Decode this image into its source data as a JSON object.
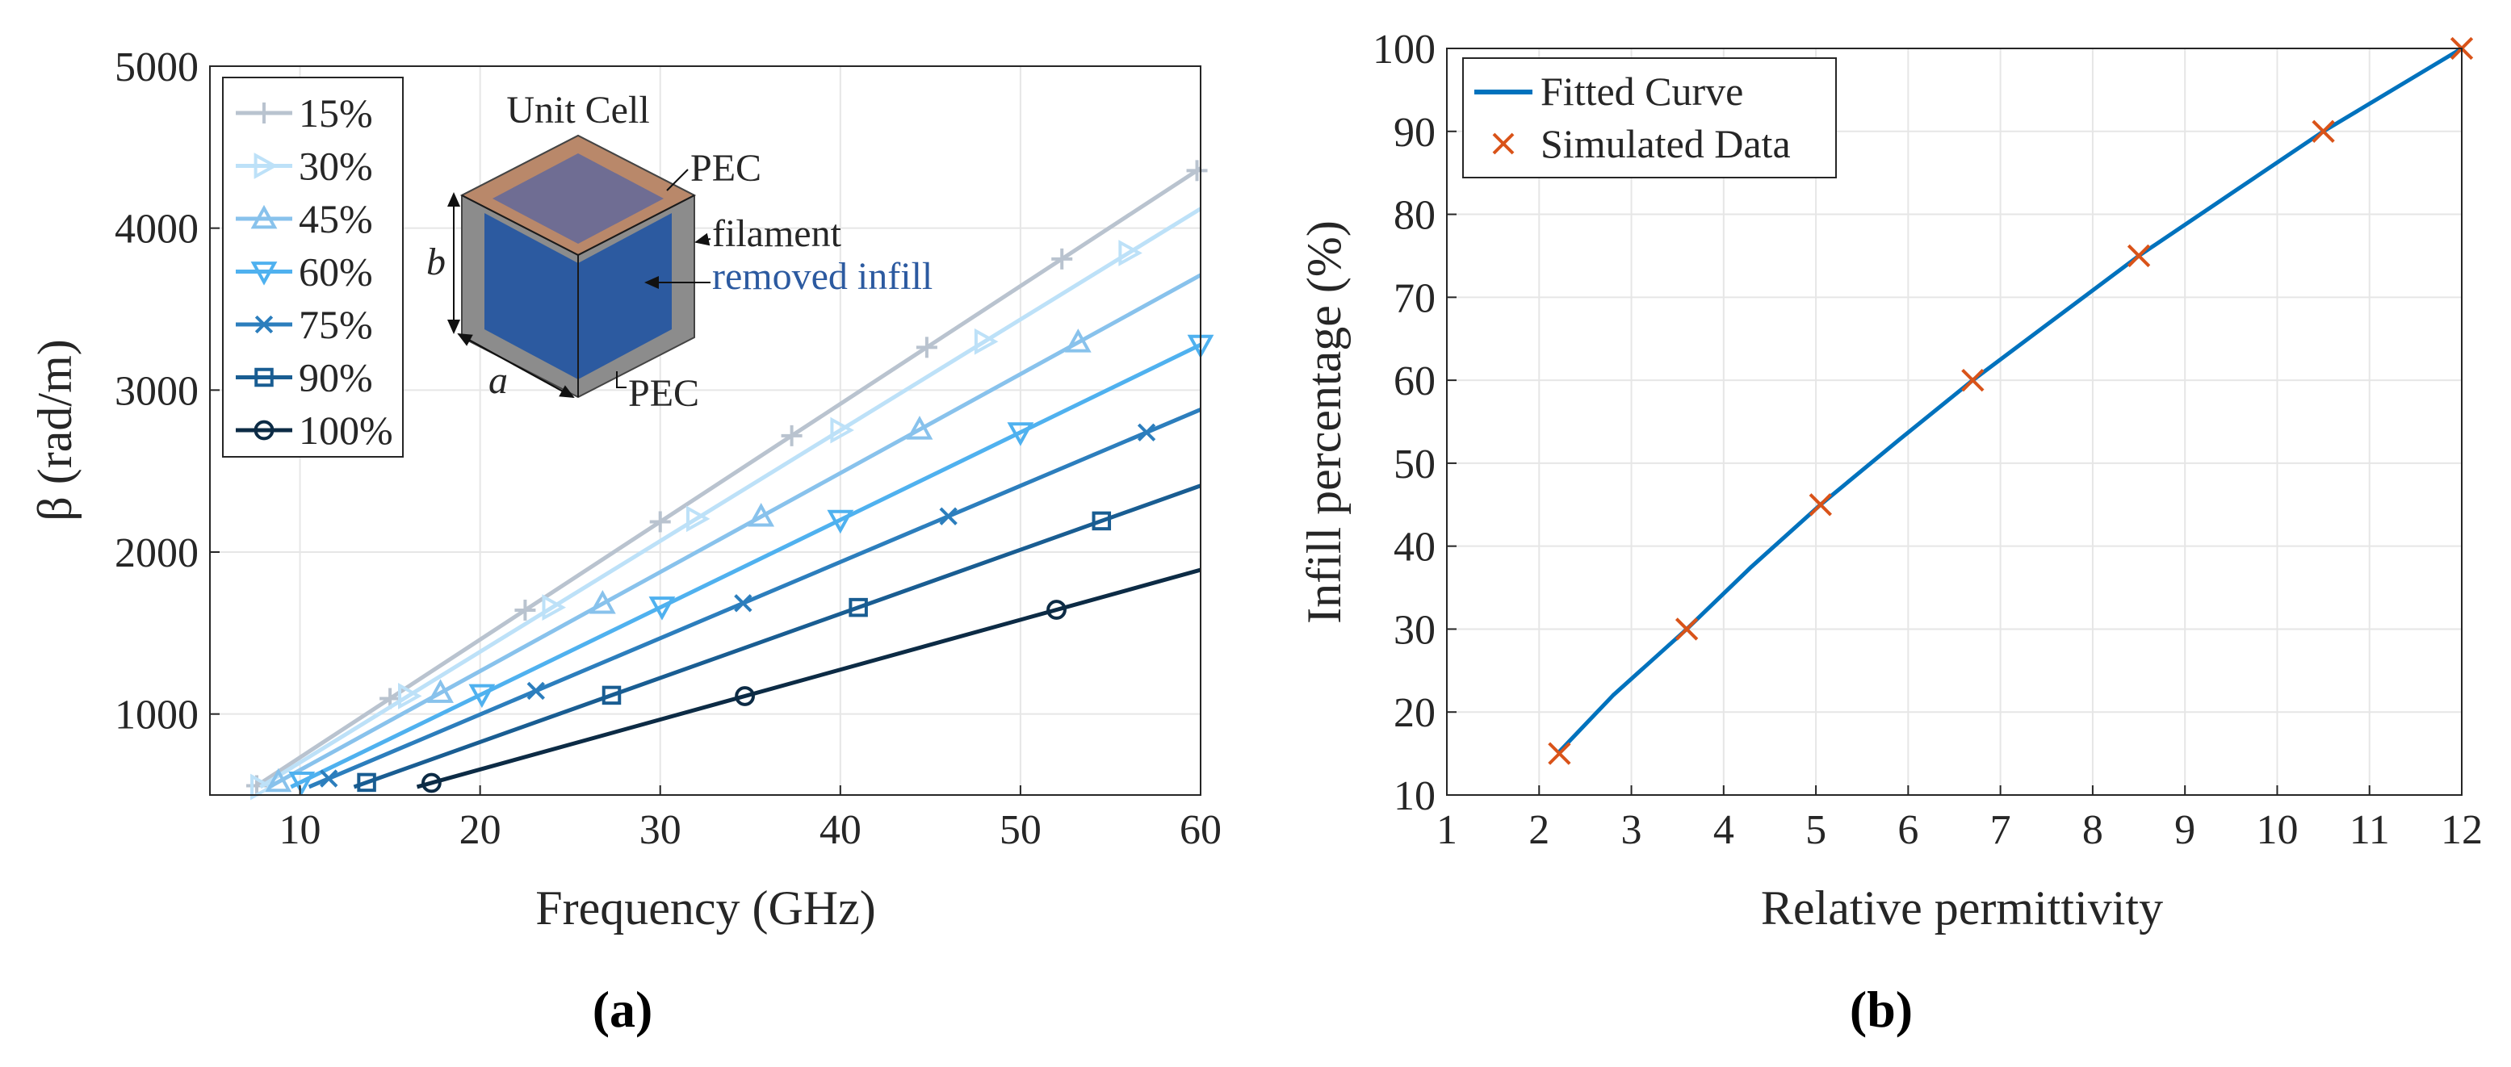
{
  "chart_data": [
    {
      "type": "line",
      "panel_label": "(a)",
      "xlabel": "Frequency (GHz)",
      "ylabel": "β (rad/m)",
      "xlim": [
        5,
        60
      ],
      "ylim": [
        500,
        5000
      ],
      "xticks": [
        10,
        20,
        30,
        40,
        50,
        60
      ],
      "yticks": [
        1000,
        2000,
        3000,
        4000,
        5000
      ],
      "grid": true,
      "legend_position": "top-left",
      "series": [
        {
          "name": "15%",
          "marker": "plus",
          "color": "#b9c3cf",
          "x": [
            7.5,
            60
          ],
          "y": [
            550,
            4370
          ],
          "markers_x": [
            7.6,
            15.0,
            22.5,
            30.0,
            37.3,
            44.8,
            52.3,
            59.8
          ]
        },
        {
          "name": "30%",
          "marker": "triangle-right",
          "color": "#bde1f8",
          "x": [
            7.8,
            60
          ],
          "y": [
            550,
            4120
          ],
          "markers_x": [
            7.8,
            16.0,
            24.0,
            32.0,
            40.0,
            48.0,
            56.0
          ]
        },
        {
          "name": "45%",
          "marker": "triangle-up",
          "color": "#88c2ec",
          "x": [
            8.3,
            60
          ],
          "y": [
            550,
            3710
          ],
          "markers_x": [
            8.8,
            17.8,
            26.8,
            35.6,
            44.4,
            53.2
          ]
        },
        {
          "name": "60%",
          "marker": "triangle-down",
          "color": "#4fb1ef",
          "x": [
            9.5,
            60
          ],
          "y": [
            550,
            3280
          ],
          "markers_x": [
            10.1,
            20.1,
            30.1,
            40.0,
            50.0,
            60.0
          ]
        },
        {
          "name": "75%",
          "marker": "x",
          "color": "#2c7ebd",
          "x": [
            10.5,
            60
          ],
          "y": [
            550,
            2880
          ],
          "markers_x": [
            11.6,
            23.1,
            34.6,
            46.0,
            57.0
          ]
        },
        {
          "name": "90%",
          "marker": "square",
          "color": "#195d92",
          "x": [
            13.0,
            60
          ],
          "y": [
            550,
            2410
          ],
          "markers_x": [
            13.7,
            27.3,
            41.0,
            54.5
          ]
        },
        {
          "name": "100%",
          "marker": "circle",
          "color": "#0c2b45",
          "x": [
            16.5,
            60
          ],
          "y": [
            550,
            1890
          ],
          "markers_x": [
            17.3,
            34.7,
            52.0
          ]
        }
      ],
      "inset": {
        "title": "Unit Cell",
        "labels": {
          "pec_top": "PEC",
          "filament": "filament",
          "removed_infill": "removed infill",
          "pec_bottom": "PEC",
          "dim_b": "b",
          "dim_a": "a"
        }
      }
    },
    {
      "type": "line",
      "panel_label": "(b)",
      "xlabel": "Relative permittivity",
      "ylabel": "Infill percentage (%)",
      "xlim": [
        1,
        12
      ],
      "ylim": [
        10,
        100
      ],
      "xticks": [
        1,
        2,
        3,
        4,
        5,
        6,
        7,
        8,
        9,
        10,
        11,
        12
      ],
      "yticks": [
        10,
        20,
        30,
        40,
        50,
        60,
        70,
        80,
        90,
        100
      ],
      "grid": true,
      "legend_position": "top-left",
      "series": [
        {
          "name": "Fitted Curve",
          "style": "line",
          "color": "#0072bd",
          "x": [
            2.2,
            2.8,
            3.6,
            4.3,
            5.05,
            5.9,
            6.7,
            7.6,
            8.5,
            9.5,
            10.5,
            11.25,
            12.0
          ],
          "y": [
            15,
            22,
            30,
            37.5,
            45,
            52.8,
            60,
            67.5,
            75,
            82.5,
            90,
            95,
            100
          ]
        },
        {
          "name": "Simulated Data",
          "style": "marker",
          "marker": "x",
          "color": "#d95319",
          "x": [
            2.22,
            3.6,
            5.05,
            6.7,
            8.5,
            10.5,
            12.0
          ],
          "y": [
            15,
            30,
            45,
            60,
            75,
            90,
            100
          ]
        }
      ]
    }
  ]
}
